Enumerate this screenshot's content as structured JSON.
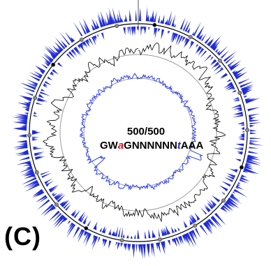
{
  "panel_label": "(C)",
  "center": {
    "count": "500/500",
    "motif": {
      "prefix": "GW",
      "mid1": "a",
      "middle": "GNNNNNN",
      "mid2": "t",
      "suffix": "AAA"
    }
  },
  "colors": {
    "outer_marks": "#1f2bd8",
    "inner_trace": "#2a3cff",
    "middle_trace": "#000000",
    "rings": "#9a9a9a",
    "outer_ring": "#000000",
    "dot_fill": "#8c8c8c",
    "motif_red": "#e0101a",
    "motif_blue": "#1b2bd6"
  }
}
